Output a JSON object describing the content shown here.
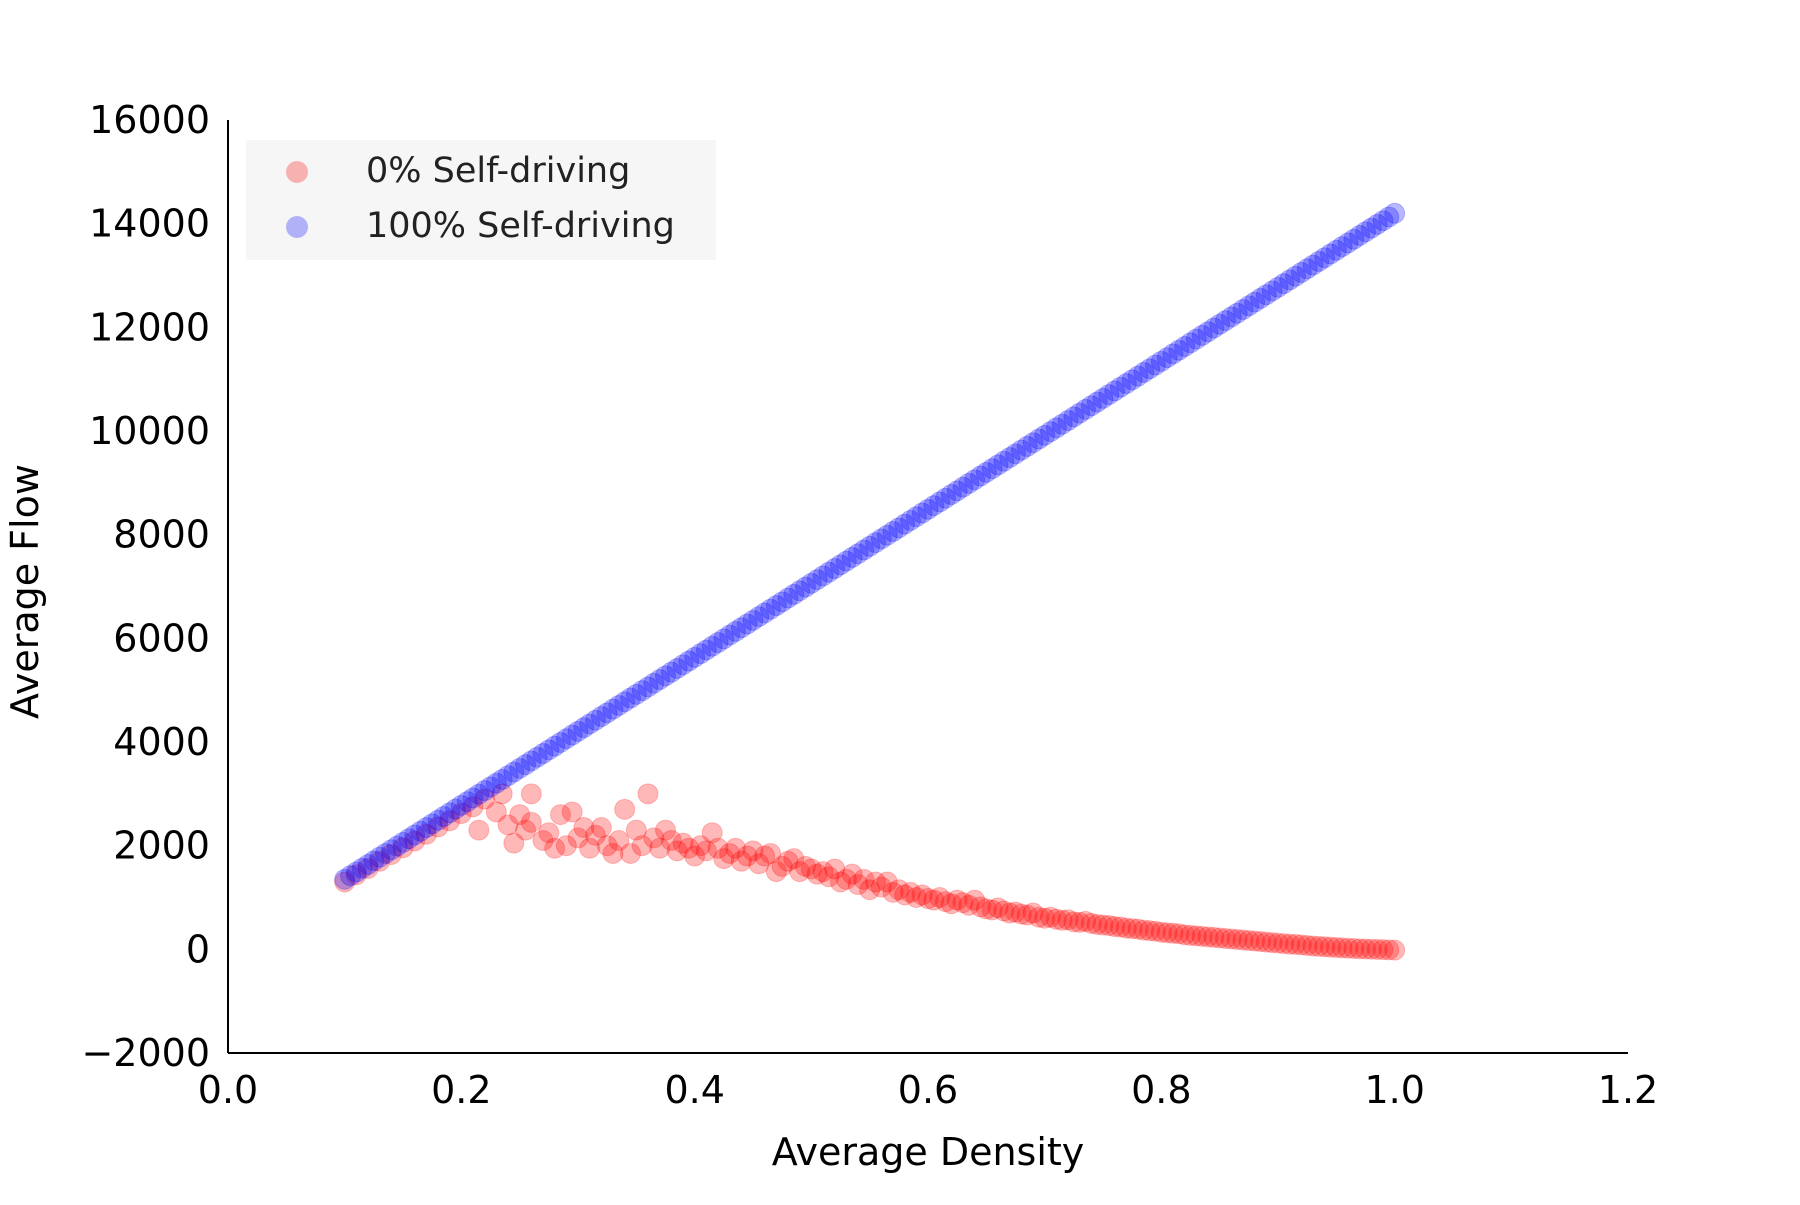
{
  "chart_data": {
    "type": "scatter",
    "title": "",
    "xlabel": "Average Density",
    "ylabel": "Average Flow",
    "xlim": [
      0.0,
      1.2
    ],
    "ylim": [
      -2000,
      16000
    ],
    "xticks": [
      0.0,
      0.2,
      0.4,
      0.6,
      0.8,
      1.0,
      1.2
    ],
    "xtick_labels": [
      "0.0",
      "0.2",
      "0.4",
      "0.6",
      "0.8",
      "1.0",
      "1.2"
    ],
    "yticks": [
      -2000,
      0,
      2000,
      4000,
      6000,
      8000,
      10000,
      12000,
      14000,
      16000
    ],
    "ytick_labels": [
      "−2000",
      "0",
      "2000",
      "4000",
      "6000",
      "8000",
      "10000",
      "12000",
      "14000",
      "16000"
    ],
    "grid": false,
    "legend_position": "top-left",
    "series": [
      {
        "name": "0% Self-driving",
        "color": "#ff0000",
        "alpha": 0.28,
        "points": [
          [
            0.1,
            1300
          ],
          [
            0.11,
            1440
          ],
          [
            0.12,
            1560
          ],
          [
            0.13,
            1700
          ],
          [
            0.14,
            1830
          ],
          [
            0.15,
            1960
          ],
          [
            0.16,
            2090
          ],
          [
            0.17,
            2220
          ],
          [
            0.18,
            2360
          ],
          [
            0.19,
            2480
          ],
          [
            0.2,
            2620
          ],
          [
            0.21,
            2750
          ],
          [
            0.215,
            2300
          ],
          [
            0.22,
            2900
          ],
          [
            0.23,
            2650
          ],
          [
            0.235,
            3000
          ],
          [
            0.24,
            2400
          ],
          [
            0.245,
            2050
          ],
          [
            0.25,
            2600
          ],
          [
            0.255,
            2300
          ],
          [
            0.26,
            2450
          ],
          [
            0.26,
            3000
          ],
          [
            0.27,
            2100
          ],
          [
            0.275,
            2250
          ],
          [
            0.28,
            1950
          ],
          [
            0.285,
            2600
          ],
          [
            0.29,
            2000
          ],
          [
            0.295,
            2650
          ],
          [
            0.3,
            2150
          ],
          [
            0.305,
            2350
          ],
          [
            0.31,
            1950
          ],
          [
            0.315,
            2200
          ],
          [
            0.32,
            2350
          ],
          [
            0.325,
            2000
          ],
          [
            0.33,
            1850
          ],
          [
            0.335,
            2100
          ],
          [
            0.34,
            2700
          ],
          [
            0.345,
            1850
          ],
          [
            0.35,
            2300
          ],
          [
            0.355,
            2000
          ],
          [
            0.36,
            3000
          ],
          [
            0.365,
            2150
          ],
          [
            0.37,
            1950
          ],
          [
            0.375,
            2300
          ],
          [
            0.38,
            2100
          ],
          [
            0.385,
            1900
          ],
          [
            0.39,
            2050
          ],
          [
            0.395,
            1950
          ],
          [
            0.4,
            1800
          ],
          [
            0.405,
            2000
          ],
          [
            0.41,
            1900
          ],
          [
            0.415,
            2250
          ],
          [
            0.42,
            1950
          ],
          [
            0.425,
            1750
          ],
          [
            0.43,
            1850
          ],
          [
            0.435,
            1950
          ],
          [
            0.44,
            1700
          ],
          [
            0.445,
            1800
          ],
          [
            0.45,
            1900
          ],
          [
            0.455,
            1650
          ],
          [
            0.46,
            1800
          ],
          [
            0.465,
            1850
          ],
          [
            0.47,
            1500
          ],
          [
            0.475,
            1600
          ],
          [
            0.48,
            1700
          ],
          [
            0.485,
            1750
          ],
          [
            0.49,
            1500
          ],
          [
            0.495,
            1600
          ],
          [
            0.5,
            1550
          ],
          [
            0.505,
            1450
          ],
          [
            0.51,
            1500
          ],
          [
            0.515,
            1400
          ],
          [
            0.52,
            1550
          ],
          [
            0.525,
            1300
          ],
          [
            0.53,
            1350
          ],
          [
            0.535,
            1450
          ],
          [
            0.54,
            1250
          ],
          [
            0.545,
            1350
          ],
          [
            0.55,
            1150
          ],
          [
            0.555,
            1300
          ],
          [
            0.56,
            1200
          ],
          [
            0.565,
            1300
          ],
          [
            0.57,
            1100
          ],
          [
            0.575,
            1150
          ],
          [
            0.58,
            1050
          ],
          [
            0.585,
            1100
          ],
          [
            0.59,
            1000
          ],
          [
            0.595,
            1050
          ],
          [
            0.6,
            980
          ],
          [
            0.605,
            950
          ],
          [
            0.61,
            1000
          ],
          [
            0.615,
            920
          ],
          [
            0.62,
            880
          ],
          [
            0.625,
            950
          ],
          [
            0.63,
            900
          ],
          [
            0.635,
            850
          ],
          [
            0.64,
            950
          ],
          [
            0.645,
            820
          ],
          [
            0.65,
            780
          ],
          [
            0.655,
            760
          ],
          [
            0.66,
            800
          ],
          [
            0.665,
            740
          ],
          [
            0.67,
            700
          ],
          [
            0.675,
            720
          ],
          [
            0.68,
            680
          ],
          [
            0.685,
            660
          ],
          [
            0.69,
            700
          ],
          [
            0.695,
            620
          ],
          [
            0.7,
            600
          ],
          [
            0.705,
            620
          ],
          [
            0.71,
            580
          ],
          [
            0.715,
            560
          ],
          [
            0.72,
            570
          ],
          [
            0.725,
            530
          ],
          [
            0.73,
            520
          ],
          [
            0.735,
            540
          ],
          [
            0.74,
            500
          ],
          [
            0.745,
            480
          ],
          [
            0.75,
            470
          ],
          [
            0.755,
            460
          ],
          [
            0.76,
            440
          ],
          [
            0.765,
            430
          ],
          [
            0.77,
            410
          ],
          [
            0.775,
            400
          ],
          [
            0.78,
            390
          ],
          [
            0.785,
            370
          ],
          [
            0.79,
            360
          ],
          [
            0.795,
            350
          ],
          [
            0.8,
            330
          ],
          [
            0.805,
            320
          ],
          [
            0.81,
            310
          ],
          [
            0.815,
            300
          ],
          [
            0.82,
            280
          ],
          [
            0.825,
            270
          ],
          [
            0.83,
            260
          ],
          [
            0.835,
            250
          ],
          [
            0.84,
            240
          ],
          [
            0.845,
            230
          ],
          [
            0.85,
            220
          ],
          [
            0.855,
            210
          ],
          [
            0.86,
            200
          ],
          [
            0.865,
            190
          ],
          [
            0.87,
            180
          ],
          [
            0.875,
            170
          ],
          [
            0.88,
            160
          ],
          [
            0.885,
            150
          ],
          [
            0.89,
            140
          ],
          [
            0.895,
            130
          ],
          [
            0.9,
            120
          ],
          [
            0.905,
            110
          ],
          [
            0.91,
            100
          ],
          [
            0.915,
            95
          ],
          [
            0.92,
            85
          ],
          [
            0.925,
            75
          ],
          [
            0.93,
            65
          ],
          [
            0.935,
            58
          ],
          [
            0.94,
            50
          ],
          [
            0.945,
            42
          ],
          [
            0.95,
            35
          ],
          [
            0.955,
            28
          ],
          [
            0.96,
            22
          ],
          [
            0.965,
            16
          ],
          [
            0.97,
            10
          ],
          [
            0.975,
            6
          ],
          [
            0.98,
            2
          ],
          [
            0.985,
            -2
          ],
          [
            0.99,
            -6
          ],
          [
            0.995,
            -10
          ],
          [
            1.0,
            -15
          ]
        ]
      },
      {
        "name": "100% Self-driving",
        "color": "#0000ff",
        "alpha": 0.28,
        "x_start": 0.1,
        "x_end": 1.0,
        "x_step": 0.005,
        "y_at_x_start": 1350,
        "y_at_x_end": 14200
      }
    ]
  }
}
